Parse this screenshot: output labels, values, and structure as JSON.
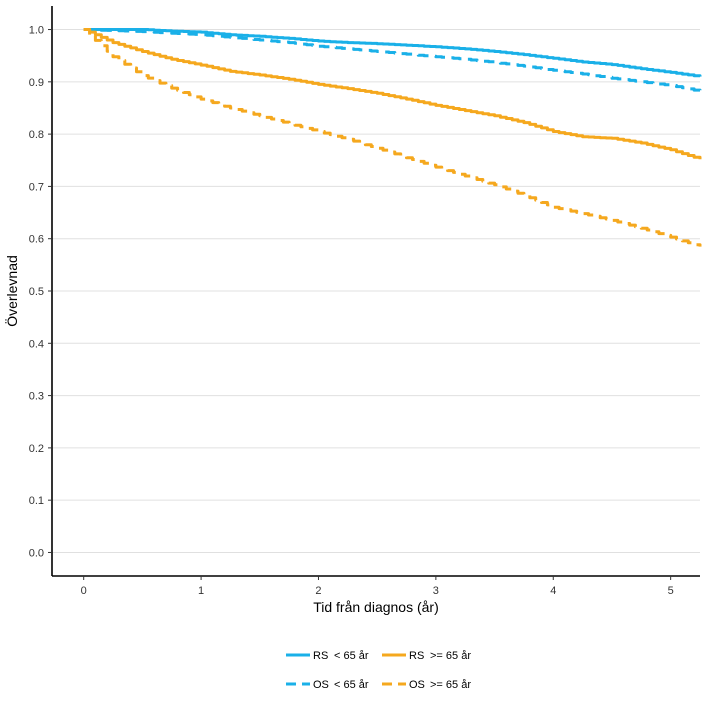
{
  "chart_data": {
    "type": "line",
    "title": "",
    "xlabel": "Tid från diagnos (år)",
    "ylabel": "Överlevnad",
    "xlim": [
      -0.27,
      5.25
    ],
    "ylim": [
      -0.045,
      1.045
    ],
    "x_ticks": [
      0,
      1,
      2,
      3,
      4,
      5
    ],
    "y_ticks": [
      0.0,
      0.1,
      0.2,
      0.3,
      0.4,
      0.5,
      0.6,
      0.7,
      0.8,
      0.9,
      1.0
    ],
    "x_tick_labels": [
      "0",
      "1",
      "2",
      "3",
      "4",
      "5"
    ],
    "y_tick_labels": [
      "0.0",
      "0.1",
      "0.2",
      "0.3",
      "0.4",
      "0.5",
      "0.6",
      "0.7",
      "0.8",
      "0.9",
      "1.0"
    ],
    "grid": "horizontal",
    "legend_position": "bottom",
    "series": [
      {
        "key": "rs_under65",
        "prefix": "RS",
        "suffix": "< 65 år",
        "color": "#1ab0e8",
        "dash": "solid",
        "x": [
          0,
          0.25,
          0.5,
          0.75,
          1.0,
          1.25,
          1.5,
          1.75,
          2.0,
          2.25,
          2.5,
          2.75,
          3.0,
          3.25,
          3.5,
          3.75,
          4.0,
          4.25,
          4.5,
          4.75,
          5.0,
          5.25
        ],
        "y": [
          1.0,
          1.0,
          1.0,
          0.997,
          0.995,
          0.99,
          0.987,
          0.983,
          0.978,
          0.975,
          0.973,
          0.97,
          0.967,
          0.963,
          0.958,
          0.952,
          0.945,
          0.938,
          0.933,
          0.925,
          0.918,
          0.91
        ]
      },
      {
        "key": "os_under65",
        "prefix": "OS",
        "suffix": "< 65 år",
        "color": "#1ab0e8",
        "dash": "dashed",
        "x": [
          0,
          0.25,
          0.5,
          0.75,
          1.0,
          1.25,
          1.5,
          1.75,
          2.0,
          2.25,
          2.5,
          2.75,
          3.0,
          3.25,
          3.5,
          3.75,
          4.0,
          4.25,
          4.5,
          4.75,
          5.0,
          5.25
        ],
        "y": [
          1.0,
          0.998,
          0.996,
          0.993,
          0.99,
          0.985,
          0.98,
          0.975,
          0.968,
          0.963,
          0.958,
          0.953,
          0.948,
          0.943,
          0.937,
          0.93,
          0.922,
          0.915,
          0.907,
          0.9,
          0.893,
          0.882
        ]
      },
      {
        "key": "rs_over65",
        "prefix": "RS",
        "suffix": ">= 65 år",
        "color": "#f5a81e",
        "dash": "solid",
        "x": [
          0,
          0.25,
          0.5,
          0.75,
          1.0,
          1.25,
          1.5,
          1.75,
          2.0,
          2.25,
          2.5,
          2.75,
          3.0,
          3.25,
          3.5,
          3.75,
          4.0,
          4.25,
          4.5,
          4.75,
          5.0,
          5.25
        ],
        "y": [
          1.0,
          0.975,
          0.958,
          0.943,
          0.932,
          0.92,
          0.913,
          0.905,
          0.895,
          0.887,
          0.878,
          0.867,
          0.855,
          0.845,
          0.835,
          0.822,
          0.805,
          0.795,
          0.792,
          0.783,
          0.77,
          0.752
        ]
      },
      {
        "key": "os_over65",
        "prefix": "OS",
        "suffix": ">= 65 år",
        "color": "#f5a81e",
        "dash": "dashed",
        "x": [
          0,
          0.25,
          0.5,
          0.75,
          1.0,
          1.25,
          1.5,
          1.75,
          2.0,
          2.25,
          2.5,
          2.75,
          3.0,
          3.25,
          3.5,
          3.75,
          4.0,
          4.25,
          4.5,
          4.75,
          5.0,
          5.25
        ],
        "y": [
          1.0,
          0.948,
          0.912,
          0.888,
          0.867,
          0.85,
          0.835,
          0.82,
          0.805,
          0.79,
          0.773,
          0.755,
          0.737,
          0.72,
          0.703,
          0.683,
          0.66,
          0.648,
          0.635,
          0.62,
          0.603,
          0.585
        ]
      }
    ]
  }
}
